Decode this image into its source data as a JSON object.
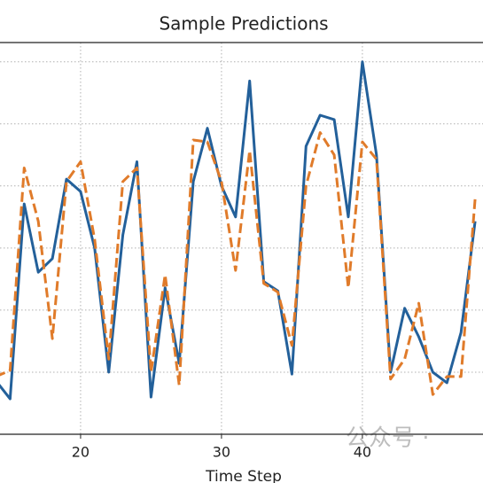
{
  "chart_data": {
    "type": "line",
    "title": "Sample Predictions",
    "x_label": "Time Step",
    "x": [
      14,
      15,
      16,
      17,
      18,
      19,
      20,
      21,
      22,
      23,
      24,
      25,
      26,
      27,
      28,
      29,
      30,
      31,
      32,
      33,
      34,
      35,
      36,
      37,
      38,
      39,
      40,
      41,
      42,
      43,
      44,
      45,
      46,
      47,
      48
    ],
    "series": [
      {
        "color": "#23609a",
        "dashed": false,
        "values": [
          0.86,
          0.57,
          3.71,
          2.61,
          2.83,
          4.11,
          3.91,
          3.0,
          1.0,
          3.21,
          4.39,
          0.6,
          2.36,
          1.14,
          4.07,
          4.93,
          4.0,
          3.5,
          5.69,
          2.46,
          2.31,
          0.97,
          4.64,
          5.14,
          5.07,
          3.5,
          6.0,
          4.5,
          1.0,
          2.03,
          1.57,
          1.0,
          0.83,
          1.64,
          3.43
        ]
      },
      {
        "color": "#e07b2a",
        "dashed": true,
        "values": [
          0.93,
          1.03,
          4.29,
          3.43,
          1.54,
          4.07,
          4.39,
          3.14,
          1.21,
          4.07,
          4.29,
          1.0,
          2.57,
          0.79,
          4.74,
          4.71,
          4.07,
          2.64,
          4.57,
          2.43,
          2.29,
          1.43,
          4.0,
          4.86,
          4.5,
          2.36,
          4.71,
          4.43,
          0.89,
          1.21,
          2.11,
          0.64,
          0.93,
          0.93,
          3.79
        ]
      }
    ],
    "xlim": [
      14.28,
      48.56
    ],
    "xticks": [
      20,
      30,
      40
    ],
    "ylim": [
      0,
      6.31
    ],
    "yticks": [
      1,
      2,
      3,
      4,
      5,
      6
    ],
    "grid": true
  },
  "watermark": "公众号 ·"
}
